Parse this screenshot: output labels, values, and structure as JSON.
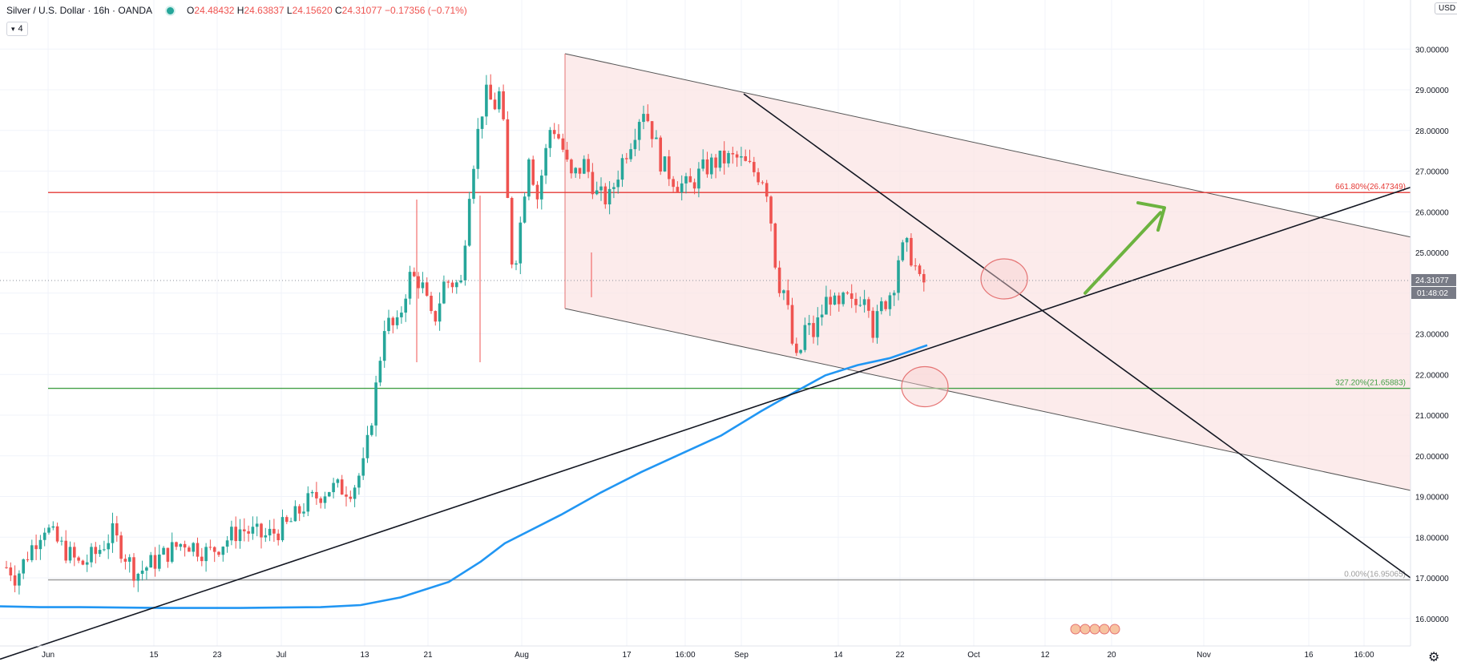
{
  "legend": {
    "symbol": "Silver / U.S. Dollar · 16h · OANDA",
    "o_label": "O",
    "o": "24.48432",
    "h_label": "H",
    "h": "24.63837",
    "l_label": "L",
    "l": "24.15620",
    "c_label": "C",
    "c": "24.31077",
    "change": "−0.17356 (−0.71%)"
  },
  "indicator_toggle": {
    "count": "4"
  },
  "currency_badge": "USD",
  "icons": {
    "settings": "gear-icon",
    "collapse": "chevron-down-icon",
    "live": "live-dot-icon"
  },
  "colors": {
    "up": "#26a69a",
    "down": "#ef5350",
    "ma": "#2196f3",
    "fib_red": "#e53935",
    "fib_green": "#43a047",
    "fib_gray": "#9e9e9e",
    "channel_fill": "#fbe4e4",
    "arrow": "#6cb33f"
  },
  "price_label": {
    "value": "24.31077",
    "countdown": "01:48:02"
  },
  "chart_data": {
    "type": "candlestick",
    "title": "Silver / U.S. Dollar · 16h · OANDA",
    "ylim": [
      15.35,
      31.2
    ],
    "y_ticks": [
      "16.00000",
      "17.00000",
      "18.00000",
      "19.00000",
      "20.00000",
      "21.00000",
      "22.00000",
      "23.00000",
      "24.00000",
      "25.00000",
      "26.00000",
      "27.00000",
      "28.00000",
      "29.00000",
      "30.00000"
    ],
    "x_ticks": [
      "Jun",
      "15",
      "23",
      "Jul",
      "13",
      "21",
      "Aug",
      "17",
      "16:00",
      "Sep",
      "14",
      "22",
      "Oct",
      "12",
      "20",
      "Nov",
      "16",
      "16:00"
    ],
    "levels": [
      {
        "label": "661.80%(26.47349)",
        "value": 26.47349,
        "color": "#e53935"
      },
      {
        "label": "327.20%(21.65883)",
        "value": 21.65883,
        "color": "#43a047"
      },
      {
        "label": "0.00%(16.95065)",
        "value": 16.95065,
        "color": "#9e9e9e"
      }
    ],
    "last_price": 24.31077,
    "ma_series": [
      {
        "x": 0,
        "y": 16.3
      },
      {
        "x": 50,
        "y": 16.28
      },
      {
        "x": 100,
        "y": 16.28
      },
      {
        "x": 200,
        "y": 16.26
      },
      {
        "x": 300,
        "y": 16.26
      },
      {
        "x": 400,
        "y": 16.28
      },
      {
        "x": 450,
        "y": 16.33
      },
      {
        "x": 500,
        "y": 16.52
      },
      {
        "x": 560,
        "y": 16.9
      },
      {
        "x": 600,
        "y": 17.4
      },
      {
        "x": 630,
        "y": 17.85
      },
      {
        "x": 700,
        "y": 18.55
      },
      {
        "x": 750,
        "y": 19.1
      },
      {
        "x": 800,
        "y": 19.6
      },
      {
        "x": 850,
        "y": 20.05
      },
      {
        "x": 900,
        "y": 20.5
      },
      {
        "x": 950,
        "y": 21.1
      },
      {
        "x": 990,
        "y": 21.55
      },
      {
        "x": 1030,
        "y": 21.98
      },
      {
        "x": 1070,
        "y": 22.23
      },
      {
        "x": 1110,
        "y": 22.4
      },
      {
        "x": 1157,
        "y": 22.72
      }
    ],
    "anchors": [
      {
        "x": 0,
        "y": 17.1
      },
      {
        "x": 10,
        "y": 17.3
      },
      {
        "x": 20,
        "y": 17.0
      },
      {
        "x": 35,
        "y": 17.6
      },
      {
        "x": 55,
        "y": 18.3
      },
      {
        "x": 70,
        "y": 17.9
      },
      {
        "x": 100,
        "y": 17.3
      },
      {
        "x": 120,
        "y": 17.6
      },
      {
        "x": 140,
        "y": 18.1
      },
      {
        "x": 170,
        "y": 17.1
      },
      {
        "x": 200,
        "y": 17.5
      },
      {
        "x": 230,
        "y": 17.9
      },
      {
        "x": 260,
        "y": 17.6
      },
      {
        "x": 300,
        "y": 18.2
      },
      {
        "x": 330,
        "y": 18.0
      },
      {
        "x": 360,
        "y": 18.3
      },
      {
        "x": 380,
        "y": 18.8
      },
      {
        "x": 410,
        "y": 19.2
      },
      {
        "x": 440,
        "y": 19.2
      },
      {
        "x": 455,
        "y": 19.8
      },
      {
        "x": 470,
        "y": 21.8
      },
      {
        "x": 480,
        "y": 23.3
      },
      {
        "x": 495,
        "y": 23.1
      },
      {
        "x": 510,
        "y": 24.4
      },
      {
        "x": 525,
        "y": 24.3
      },
      {
        "x": 540,
        "y": 23.2
      },
      {
        "x": 555,
        "y": 24.3
      },
      {
        "x": 575,
        "y": 24.2
      },
      {
        "x": 585,
        "y": 26.5
      },
      {
        "x": 595,
        "y": 27.8
      },
      {
        "x": 605,
        "y": 28.9
      },
      {
        "x": 617,
        "y": 28.6
      },
      {
        "x": 625,
        "y": 29.0
      },
      {
        "x": 632,
        "y": 26.8
      },
      {
        "x": 637,
        "y": 24.8
      },
      {
        "x": 645,
        "y": 25.0
      },
      {
        "x": 660,
        "y": 27.5
      },
      {
        "x": 670,
        "y": 26.3
      },
      {
        "x": 688,
        "y": 28.2
      },
      {
        "x": 700,
        "y": 27.7
      },
      {
        "x": 712,
        "y": 26.8
      },
      {
        "x": 730,
        "y": 27.2
      },
      {
        "x": 745,
        "y": 26.4
      },
      {
        "x": 760,
        "y": 26.3
      },
      {
        "x": 775,
        "y": 27.2
      },
      {
        "x": 790,
        "y": 27.9
      },
      {
        "x": 802,
        "y": 28.6
      },
      {
        "x": 812,
        "y": 28.1
      },
      {
        "x": 825,
        "y": 27.2
      },
      {
        "x": 845,
        "y": 26.7
      },
      {
        "x": 860,
        "y": 26.6
      },
      {
        "x": 875,
        "y": 27.0
      },
      {
        "x": 890,
        "y": 27.2
      },
      {
        "x": 905,
        "y": 27.3
      },
      {
        "x": 920,
        "y": 27.3
      },
      {
        "x": 940,
        "y": 27.0
      },
      {
        "x": 955,
        "y": 26.8
      },
      {
        "x": 962,
        "y": 25.8
      },
      {
        "x": 970,
        "y": 24.3
      },
      {
        "x": 980,
        "y": 24.0
      },
      {
        "x": 988,
        "y": 22.8
      },
      {
        "x": 995,
        "y": 22.2
      },
      {
        "x": 1005,
        "y": 23.2
      },
      {
        "x": 1015,
        "y": 23.0
      },
      {
        "x": 1025,
        "y": 23.5
      },
      {
        "x": 1035,
        "y": 24.0
      },
      {
        "x": 1045,
        "y": 23.5
      },
      {
        "x": 1055,
        "y": 23.9
      },
      {
        "x": 1065,
        "y": 23.6
      },
      {
        "x": 1075,
        "y": 24.0
      },
      {
        "x": 1082,
        "y": 24.1
      },
      {
        "x": 1090,
        "y": 23.0
      },
      {
        "x": 1098,
        "y": 23.6
      },
      {
        "x": 1108,
        "y": 23.9
      },
      {
        "x": 1115,
        "y": 24.2
      },
      {
        "x": 1122,
        "y": 25.0
      },
      {
        "x": 1132,
        "y": 25.1
      },
      {
        "x": 1140,
        "y": 24.8
      },
      {
        "x": 1148,
        "y": 24.2
      },
      {
        "x": 1157,
        "y": 24.31
      }
    ]
  }
}
